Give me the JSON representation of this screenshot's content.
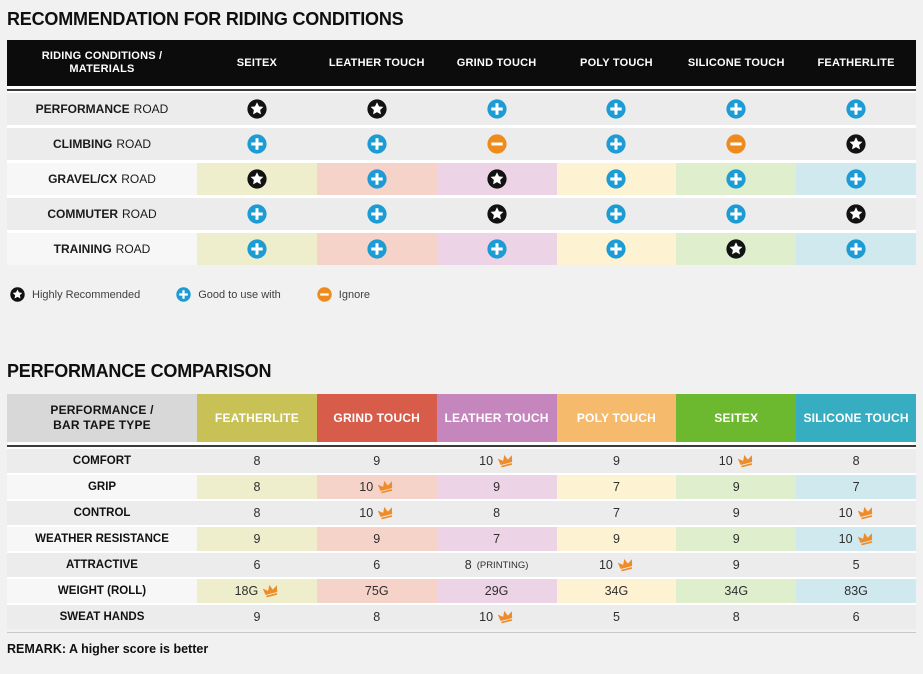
{
  "table1": {
    "title": "RECOMMENDATION FOR RIDING CONDITIONS",
    "corner_header": "RIDING CONDITIONS / MATERIALS",
    "columns": [
      "SEITEX",
      "LEATHER TOUCH",
      "GRIND TOUCH",
      "POLY TOUCH",
      "SILICONE TOUCH",
      "FEATHERLITE"
    ],
    "rows": [
      {
        "label_bold": "PERFORMANCE",
        "label_rest": "ROAD",
        "tinted": false,
        "cells": [
          "star",
          "star",
          "plus",
          "plus",
          "plus",
          "plus"
        ]
      },
      {
        "label_bold": "CLIMBING",
        "label_rest": "ROAD",
        "tinted": false,
        "cells": [
          "plus",
          "plus",
          "minus",
          "plus",
          "minus",
          "star"
        ]
      },
      {
        "label_bold": "GRAVEL/CX",
        "label_rest": "ROAD",
        "tinted": true,
        "cells": [
          "star",
          "plus",
          "star",
          "plus",
          "plus",
          "plus"
        ]
      },
      {
        "label_bold": "COMMUTER",
        "label_rest": "ROAD",
        "tinted": false,
        "cells": [
          "plus",
          "plus",
          "star",
          "plus",
          "plus",
          "star"
        ]
      },
      {
        "label_bold": "TRAINING",
        "label_rest": "ROAD",
        "tinted": true,
        "cells": [
          "plus",
          "plus",
          "plus",
          "plus",
          "star",
          "plus"
        ]
      }
    ],
    "legend": [
      {
        "icon": "star",
        "label": "Highly Recommended"
      },
      {
        "icon": "plus",
        "label": "Good to use with"
      },
      {
        "icon": "minus",
        "label": "Ignore"
      }
    ]
  },
  "table2": {
    "title": "PERFORMANCE COMPARISON",
    "corner_header": "PERFORMANCE / BAR TAPE TYPE",
    "columns": [
      {
        "label": "FEATHERLITE",
        "color": "#c7c156"
      },
      {
        "label": "GRIND TOUCH",
        "color": "#d85c4a"
      },
      {
        "label": "LEATHER TOUCH",
        "color": "#c585bd"
      },
      {
        "label": "POLY TOUCH",
        "color": "#f6ba6c"
      },
      {
        "label": "SEITEX",
        "color": "#6cb82e"
      },
      {
        "label": "SILICONE TOUCH",
        "color": "#36adc1"
      }
    ],
    "rows": [
      {
        "label": "COMFORT",
        "tinted": false,
        "cells": [
          {
            "value": "8"
          },
          {
            "value": "9"
          },
          {
            "value": "10",
            "crown": true
          },
          {
            "value": "9"
          },
          {
            "value": "10",
            "crown": true
          },
          {
            "value": "8"
          }
        ]
      },
      {
        "label": "GRIP",
        "tinted": true,
        "cells": [
          {
            "value": "8"
          },
          {
            "value": "10",
            "crown": true
          },
          {
            "value": "9"
          },
          {
            "value": "7"
          },
          {
            "value": "9"
          },
          {
            "value": "7"
          }
        ]
      },
      {
        "label": "CONTROL",
        "tinted": false,
        "cells": [
          {
            "value": "8"
          },
          {
            "value": "10",
            "crown": true
          },
          {
            "value": "8"
          },
          {
            "value": "7"
          },
          {
            "value": "9"
          },
          {
            "value": "10",
            "crown": true
          }
        ]
      },
      {
        "label": "WEATHER RESISTANCE",
        "tinted": true,
        "cells": [
          {
            "value": "9"
          },
          {
            "value": "9"
          },
          {
            "value": "7"
          },
          {
            "value": "9"
          },
          {
            "value": "9"
          },
          {
            "value": "10",
            "crown": true
          }
        ]
      },
      {
        "label": "ATTRACTIVE",
        "tinted": false,
        "cells": [
          {
            "value": "6"
          },
          {
            "value": "6"
          },
          {
            "value": "8",
            "suffix": "(PRINTING)"
          },
          {
            "value": "10",
            "crown": true
          },
          {
            "value": "9"
          },
          {
            "value": "5"
          }
        ]
      },
      {
        "label": "WEIGHT (ROLL)",
        "tinted": true,
        "cells": [
          {
            "value": "18G",
            "crown": true
          },
          {
            "value": "75G"
          },
          {
            "value": "29G"
          },
          {
            "value": "34G"
          },
          {
            "value": "34G"
          },
          {
            "value": "83G"
          }
        ]
      },
      {
        "label": "SWEAT HANDS",
        "tinted": false,
        "cells": [
          {
            "value": "9"
          },
          {
            "value": "8"
          },
          {
            "value": "10",
            "crown": true
          },
          {
            "value": "5"
          },
          {
            "value": "8"
          },
          {
            "value": "6"
          }
        ]
      }
    ],
    "remark": "REMARK: A higher score is better"
  },
  "colors": {
    "tints": [
      "#eeeecd",
      "#f6d3c9",
      "#ecd4e6",
      "#fdf3d2",
      "#dfeecd",
      "#cfe9ee"
    ],
    "row_gray": "#ececec",
    "label_light": "#f7f7f7",
    "header_black": "#0c0c0c",
    "corner_gray": "#d8d8d8",
    "plus_blue": "#1d9bd4",
    "minus_orange": "#ef8a1d",
    "star_black": "#121212",
    "crown_orange": "#ef8c2a"
  },
  "chart_data": [
    {
      "type": "table",
      "title": "RECOMMENDATION FOR RIDING CONDITIONS",
      "row_header": "RIDING CONDITIONS / MATERIALS",
      "columns": [
        "SEITEX",
        "LEATHER TOUCH",
        "GRIND TOUCH",
        "POLY TOUCH",
        "SILICONE TOUCH",
        "FEATHERLITE"
      ],
      "rows": [
        "PERFORMANCE ROAD",
        "CLIMBING ROAD",
        "GRAVEL/CX ROAD",
        "COMMUTER ROAD",
        "TRAINING ROAD"
      ],
      "values": [
        [
          "highly_recommended",
          "highly_recommended",
          "good_to_use_with",
          "good_to_use_with",
          "good_to_use_with",
          "good_to_use_with"
        ],
        [
          "good_to_use_with",
          "good_to_use_with",
          "ignore",
          "good_to_use_with",
          "ignore",
          "highly_recommended"
        ],
        [
          "highly_recommended",
          "good_to_use_with",
          "highly_recommended",
          "good_to_use_with",
          "good_to_use_with",
          "good_to_use_with"
        ],
        [
          "good_to_use_with",
          "good_to_use_with",
          "highly_recommended",
          "good_to_use_with",
          "good_to_use_with",
          "highly_recommended"
        ],
        [
          "good_to_use_with",
          "good_to_use_with",
          "good_to_use_with",
          "good_to_use_with",
          "highly_recommended",
          "good_to_use_with"
        ]
      ],
      "legend": [
        "Highly Recommended",
        "Good to use with",
        "Ignore"
      ]
    },
    {
      "type": "table",
      "title": "PERFORMANCE COMPARISON",
      "row_header": "PERFORMANCE / BAR TAPE TYPE",
      "columns": [
        "FEATHERLITE",
        "GRIND TOUCH",
        "LEATHER TOUCH",
        "POLY TOUCH",
        "SEITEX",
        "SILICONE TOUCH"
      ],
      "rows": [
        "COMFORT",
        "GRIP",
        "CONTROL",
        "WEATHER RESISTANCE",
        "ATTRACTIVE",
        "WEIGHT (ROLL)",
        "SWEAT HANDS"
      ],
      "values": [
        [
          "8",
          "9",
          "10",
          "9",
          "10",
          "8"
        ],
        [
          "8",
          "10",
          "9",
          "7",
          "9",
          "7"
        ],
        [
          "8",
          "10",
          "8",
          "7",
          "9",
          "10"
        ],
        [
          "9",
          "9",
          "7",
          "9",
          "9",
          "10"
        ],
        [
          "6",
          "6",
          "8 (PRINTING)",
          "10",
          "9",
          "5"
        ],
        [
          "18G",
          "75G",
          "29G",
          "34G",
          "34G",
          "83G"
        ],
        [
          "9",
          "8",
          "10",
          "5",
          "8",
          "6"
        ]
      ],
      "best_marker_crown": [
        [
          false,
          false,
          true,
          false,
          true,
          false
        ],
        [
          false,
          true,
          false,
          false,
          false,
          false
        ],
        [
          false,
          true,
          false,
          false,
          false,
          true
        ],
        [
          false,
          false,
          false,
          false,
          false,
          true
        ],
        [
          false,
          false,
          false,
          true,
          false,
          false
        ],
        [
          true,
          false,
          false,
          false,
          false,
          false
        ],
        [
          false,
          false,
          true,
          false,
          false,
          false
        ]
      ],
      "remark": "REMARK: A higher score is better"
    }
  ]
}
